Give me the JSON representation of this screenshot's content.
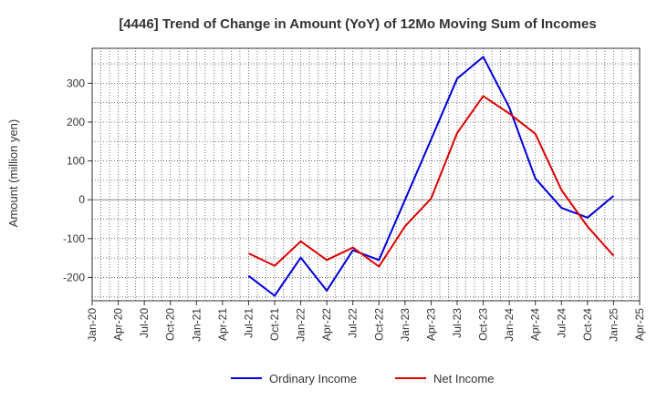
{
  "chart_data": {
    "type": "line",
    "title": "[4446]  Trend of Change in Amount (YoY) of 12Mo Moving Sum of Incomes",
    "xlabel": "",
    "ylabel": "Amount (million yen)",
    "categories": [
      "Jan-20",
      "Apr-20",
      "Jul-20",
      "Oct-20",
      "Jan-21",
      "Apr-21",
      "Jul-21",
      "Oct-21",
      "Jan-22",
      "Apr-22",
      "Jul-22",
      "Oct-22",
      "Jan-23",
      "Apr-23",
      "Jul-23",
      "Oct-23",
      "Jan-24",
      "Apr-24",
      "Jul-24",
      "Oct-24",
      "Jan-25",
      "Apr-25"
    ],
    "yticks": [
      -200,
      -100,
      0,
      100,
      200,
      300
    ],
    "ylim": [
      -260,
      390
    ],
    "grid": true,
    "legend_position": "bottom",
    "series": [
      {
        "name": "Ordinary Income",
        "color": "#0000dd",
        "values": [
          null,
          null,
          null,
          null,
          null,
          null,
          -196,
          -247,
          -149,
          -234,
          -130,
          -155,
          0,
          155,
          312,
          368,
          238,
          55,
          -21,
          -46,
          10,
          null
        ]
      },
      {
        "name": "Net Income",
        "color": "#dd0000",
        "values": [
          null,
          null,
          null,
          null,
          null,
          null,
          -138,
          -170,
          -107,
          -155,
          -123,
          -172,
          -68,
          3,
          172,
          267,
          222,
          170,
          25,
          -69,
          -144,
          null
        ]
      }
    ]
  }
}
